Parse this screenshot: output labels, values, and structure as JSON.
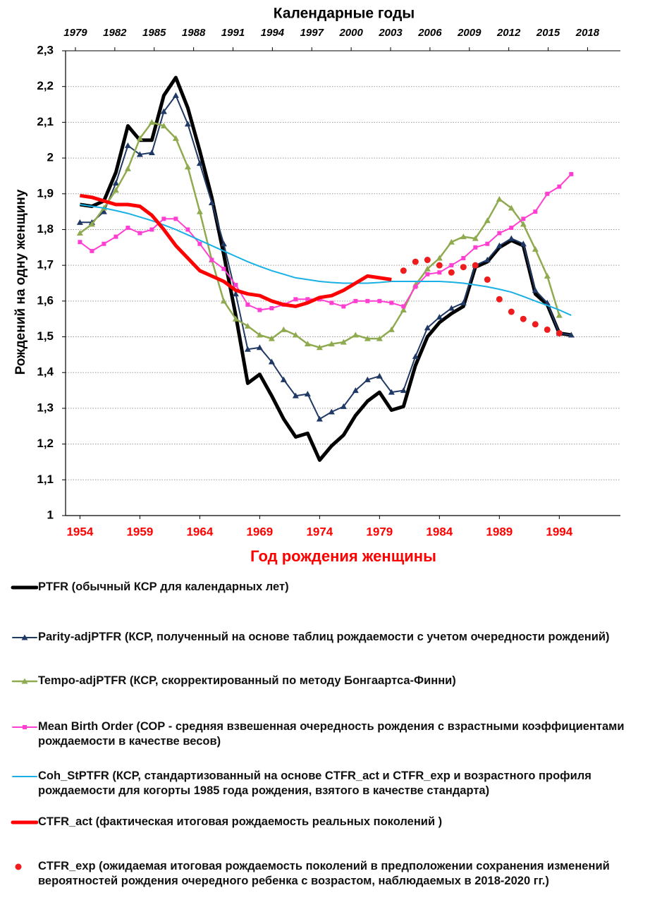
{
  "chart_data": {
    "type": "line",
    "title": "Календарные годы",
    "x_label": "Год рождения женщины",
    "y_label": "Рождений на одну женщину",
    "x": [
      1954,
      1955,
      1956,
      1957,
      1958,
      1959,
      1960,
      1961,
      1962,
      1963,
      1964,
      1965,
      1966,
      1967,
      1968,
      1969,
      1970,
      1971,
      1972,
      1973,
      1974,
      1975,
      1976,
      1977,
      1978,
      1979,
      1980,
      1981,
      1982,
      1983,
      1984,
      1985,
      1986,
      1987,
      1988,
      1989,
      1990,
      1991,
      1992,
      1993,
      1994,
      1995
    ],
    "xlim": [
      1952.8,
      1999.1
    ],
    "xticks": [
      1954,
      1959,
      1964,
      1969,
      1974,
      1979,
      1984,
      1989,
      1994
    ],
    "x2lim": [
      1978.25,
      2020.5
    ],
    "x2ticks": [
      1979,
      1982,
      1985,
      1988,
      1991,
      1994,
      1997,
      2000,
      2003,
      2006,
      2009,
      2012,
      2015,
      2018
    ],
    "ylim": [
      1,
      2.3
    ],
    "yticks": [
      1,
      {
        "value": 1.1,
        "label": "1,1"
      },
      {
        "value": 1.2,
        "label": "1,2"
      },
      {
        "value": 1.3,
        "label": "1,3"
      },
      {
        "value": 1.4,
        "label": "1,4"
      },
      {
        "value": 1.5,
        "label": "1,5"
      },
      {
        "value": 1.6,
        "label": "1,6"
      },
      {
        "value": 1.7,
        "label": "1,7"
      },
      {
        "value": 1.8,
        "label": "1,8"
      },
      {
        "value": 1.9,
        "label": "1,9"
      },
      2,
      {
        "value": 2.1,
        "label": "2,1"
      },
      {
        "value": 2.2,
        "label": "2,2"
      },
      {
        "value": 2.3,
        "label": "2,3"
      }
    ],
    "grid": true,
    "series": [
      {
        "name": "PTFR (обычный КСР для календарных лет)",
        "color": "#000000",
        "width": 5,
        "marker": "none",
        "values": [
          1.87,
          1.865,
          1.88,
          1.96,
          2.09,
          2.05,
          2.05,
          2.175,
          2.225,
          2.14,
          2.02,
          1.89,
          1.73,
          1.56,
          1.37,
          1.395,
          1.335,
          1.27,
          1.22,
          1.23,
          1.155,
          1.195,
          1.225,
          1.28,
          1.32,
          1.345,
          1.295,
          1.305,
          1.42,
          1.5,
          1.54,
          1.565,
          1.585,
          1.695,
          1.71,
          1.75,
          1.77,
          1.755,
          1.62,
          1.59,
          1.51,
          1.505
        ]
      },
      {
        "name": "Parity-adjPTFR (КСР, полученный на основе таблиц рождаемости с учетом очередности рождений)",
        "color": "#1f3864",
        "width": 2,
        "marker": "triangle",
        "values": [
          1.82,
          1.82,
          1.85,
          1.93,
          2.035,
          2.01,
          2.015,
          2.13,
          2.175,
          2.095,
          1.985,
          1.875,
          1.76,
          1.62,
          1.465,
          1.47,
          1.43,
          1.38,
          1.335,
          1.34,
          1.27,
          1.29,
          1.305,
          1.35,
          1.38,
          1.39,
          1.345,
          1.35,
          1.445,
          1.525,
          1.555,
          1.58,
          1.595,
          1.7,
          1.715,
          1.755,
          1.775,
          1.76,
          1.63,
          1.595,
          1.51,
          1.505
        ]
      },
      {
        "name": "Tempo-adjPTFR (КСР, скорректированный по методу Бонгаартса-Финни)",
        "color": "#8faa4f",
        "width": 2.5,
        "marker": "triangle",
        "values": [
          1.79,
          1.815,
          1.86,
          1.91,
          1.97,
          2.055,
          2.1,
          2.09,
          2.055,
          1.975,
          1.85,
          1.715,
          1.6,
          1.55,
          1.53,
          1.505,
          1.495,
          1.52,
          1.505,
          1.48,
          1.47,
          1.48,
          1.485,
          1.505,
          1.495,
          1.495,
          1.52,
          1.575,
          1.645,
          1.69,
          1.72,
          1.765,
          1.78,
          1.775,
          1.825,
          1.885,
          1.86,
          1.815,
          1.745,
          1.67,
          1.56,
          null
        ]
      },
      {
        "name": "Mean Birth Order (СОР - средняя взвешенная очередность рождения с взрастными коэффициентами рождаемости в качестве весов)",
        "color": "#ff3fd2",
        "width": 2,
        "marker": "square",
        "values": [
          1.765,
          1.74,
          1.76,
          1.78,
          1.805,
          1.79,
          1.8,
          1.83,
          1.83,
          1.8,
          1.76,
          1.715,
          1.69,
          1.645,
          1.59,
          1.575,
          1.58,
          1.59,
          1.605,
          1.605,
          1.605,
          1.595,
          1.585,
          1.6,
          1.6,
          1.6,
          1.595,
          1.585,
          1.64,
          1.675,
          1.68,
          1.7,
          1.72,
          1.75,
          1.76,
          1.79,
          1.805,
          1.83,
          1.85,
          1.9,
          1.92,
          1.955
        ]
      },
      {
        "name": "Coh_StPTFR (КСР, стандартизованный на основе CTFR_act и CTFR_exp и возрастного профиля рождаемости для когорты 1985 года рождения, взятого в качестве стандарта)",
        "color": "#19b0e6",
        "width": 2,
        "marker": "none",
        "values": [
          1.87,
          1.865,
          1.86,
          1.853,
          1.845,
          1.835,
          1.825,
          1.813,
          1.8,
          1.785,
          1.77,
          1.755,
          1.74,
          1.725,
          1.71,
          1.697,
          1.685,
          1.675,
          1.665,
          1.66,
          1.655,
          1.652,
          1.65,
          1.65,
          1.65,
          1.652,
          1.655,
          1.655,
          1.655,
          1.655,
          1.655,
          1.653,
          1.65,
          1.645,
          1.64,
          1.633,
          1.625,
          1.613,
          1.6,
          1.588,
          1.575,
          1.56
        ]
      },
      {
        "name": "CTFR_act (фактическая итоговая рождаемость реальных поколений )",
        "color": "#ff0000",
        "width": 5,
        "marker": "none",
        "values": [
          1.895,
          1.89,
          1.88,
          1.87,
          1.87,
          1.865,
          1.84,
          1.8,
          1.755,
          1.72,
          1.685,
          1.67,
          1.655,
          1.63,
          1.62,
          1.615,
          1.6,
          1.59,
          1.585,
          1.595,
          1.61,
          1.615,
          1.63,
          1.65,
          1.67,
          1.665,
          1.66,
          null,
          null,
          null,
          null,
          null,
          null,
          null,
          null,
          null,
          null,
          null,
          null,
          null,
          null,
          null
        ]
      },
      {
        "name": "CTFR_exp (ожидаемая итоговая рождаемость поколений в предположении сохранения изменений вероятностей рождения очередного ребенка с возрастом, наблюдаемых в 2018-2020 гг.)",
        "color": "#ee1c1c",
        "width": 0,
        "marker": "dot",
        "values": [
          null,
          null,
          null,
          null,
          null,
          null,
          null,
          null,
          null,
          null,
          null,
          null,
          null,
          null,
          null,
          null,
          null,
          null,
          null,
          null,
          null,
          null,
          null,
          null,
          null,
          null,
          null,
          1.685,
          1.71,
          1.715,
          1.7,
          1.68,
          1.695,
          1.7,
          1.66,
          1.605,
          1.57,
          1.55,
          1.535,
          1.52,
          1.51,
          null
        ]
      }
    ]
  }
}
